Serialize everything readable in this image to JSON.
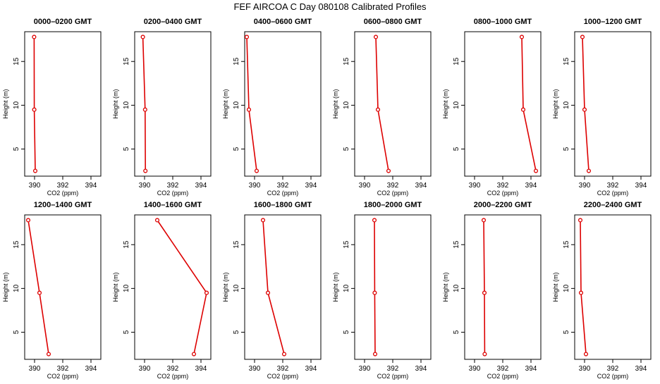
{
  "chart_data": {
    "title": "FEF AIRCOA C  Day 080108  Calibrated Profiles",
    "type": "line",
    "xlabel": "CO2 (ppm)",
    "ylabel": "Height (m)",
    "xlim": [
      389.3,
      394.7
    ],
    "ylim": [
      1.9,
      18.4
    ],
    "xticks": [
      390,
      392,
      394
    ],
    "yticks": [
      5,
      10,
      15
    ],
    "series_color": "#dd0000",
    "heights": [
      17.8,
      9.5,
      2.5
    ],
    "panels": [
      {
        "title": "0000–0200 GMT",
        "values": [
          389.97,
          389.98,
          390.05
        ]
      },
      {
        "title": "0200–0400 GMT",
        "values": [
          389.88,
          390.04,
          390.06
        ]
      },
      {
        "title": "0400–0600 GMT",
        "values": [
          389.45,
          389.6,
          390.15
        ]
      },
      {
        "title": "0600–0800 GMT",
        "values": [
          390.8,
          390.95,
          391.7
        ]
      },
      {
        "title": "0800–1000 GMT",
        "values": [
          393.35,
          393.45,
          394.35
        ]
      },
      {
        "title": "1000–1200 GMT",
        "values": [
          389.85,
          390.0,
          390.3
        ]
      },
      {
        "title": "1200–1400 GMT",
        "values": [
          389.55,
          390.35,
          391.0
        ]
      },
      {
        "title": "1400–1600 GMT",
        "values": [
          390.9,
          394.4,
          393.5
        ]
      },
      {
        "title": "1600–1800 GMT",
        "values": [
          390.6,
          390.95,
          392.1
        ]
      },
      {
        "title": "1800–2000 GMT",
        "values": [
          390.7,
          390.72,
          390.75
        ]
      },
      {
        "title": "2000–2200 GMT",
        "values": [
          390.65,
          390.7,
          390.72
        ]
      },
      {
        "title": "2200–2400 GMT",
        "values": [
          389.7,
          389.75,
          390.1
        ]
      }
    ]
  }
}
